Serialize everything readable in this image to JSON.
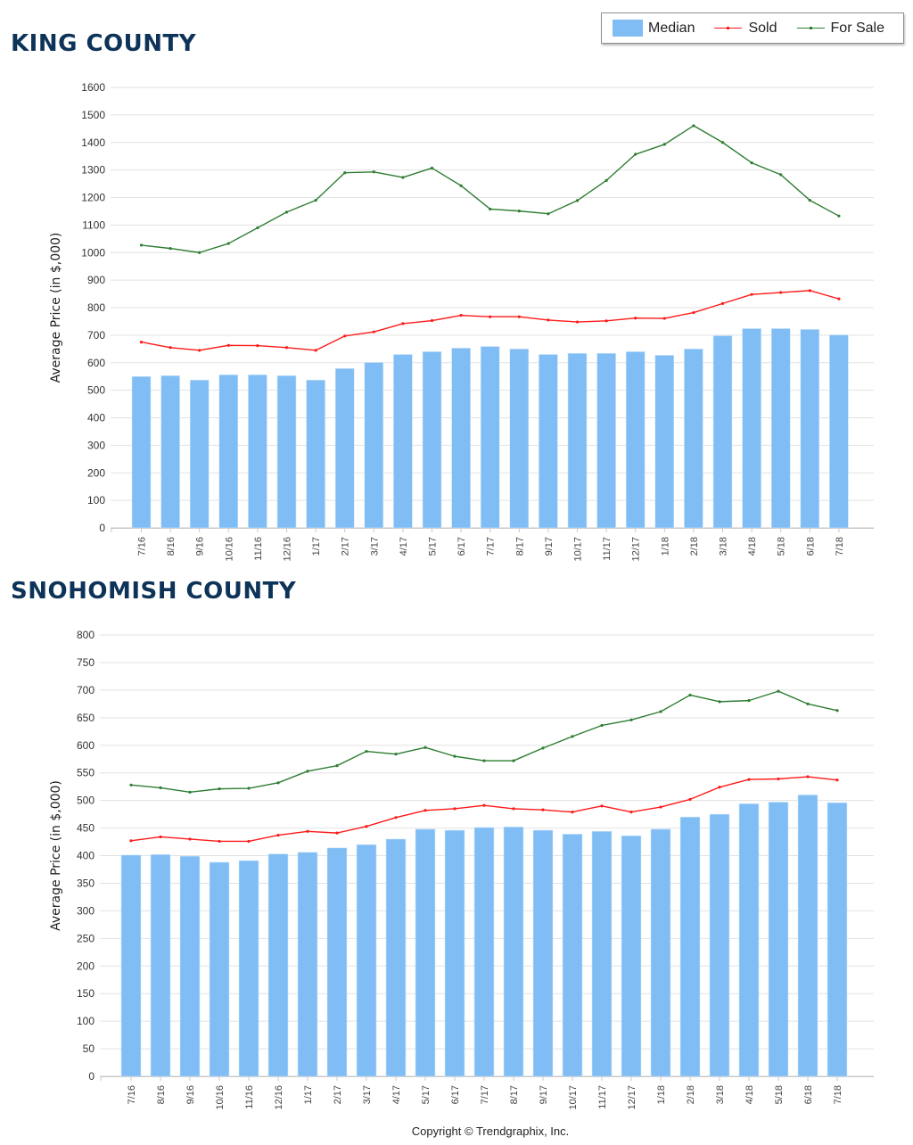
{
  "legend": {
    "median_label": "Median",
    "sold_label": "Sold",
    "for_sale_label": "For Sale",
    "colors": {
      "median": "#7fbdf4",
      "sold": "#ff1a1a",
      "for_sale": "#2e7d32"
    }
  },
  "footer": {
    "copyright": "Copyright © Trendgraphix, Inc."
  },
  "chart_data": [
    {
      "type": "bar",
      "title": "KING COUNTY",
      "xlabel": "",
      "ylabel": "Average Price (in $,000)",
      "ylim": [
        0,
        1600
      ],
      "yticks": [
        0,
        100,
        200,
        300,
        400,
        500,
        600,
        700,
        800,
        900,
        1000,
        1100,
        1200,
        1300,
        1400,
        1500,
        1600
      ],
      "grid": true,
      "legend_position": "top-right",
      "categories": [
        "7/16",
        "8/16",
        "9/16",
        "10/16",
        "11/16",
        "12/16",
        "1/17",
        "2/17",
        "3/17",
        "4/17",
        "5/17",
        "6/17",
        "7/17",
        "8/17",
        "9/17",
        "10/17",
        "11/17",
        "12/17",
        "1/18",
        "2/18",
        "3/18",
        "4/18",
        "5/18",
        "6/18",
        "7/18"
      ],
      "series": [
        {
          "name": "Median",
          "kind": "bar",
          "values": [
            550,
            553,
            537,
            556,
            556,
            553,
            537,
            579,
            601,
            630,
            640,
            653,
            659,
            650,
            630,
            634,
            634,
            640,
            627,
            650,
            698,
            724,
            724,
            721,
            701
          ]
        },
        {
          "name": "Sold",
          "kind": "line",
          "values": [
            675,
            655,
            645,
            663,
            662,
            655,
            645,
            697,
            712,
            742,
            753,
            772,
            767,
            767,
            755,
            748,
            752,
            762,
            761,
            782,
            815,
            848,
            855,
            862,
            832
          ]
        },
        {
          "name": "For Sale",
          "kind": "line",
          "values": [
            1027,
            1015,
            1000,
            1033,
            1090,
            1147,
            1190,
            1290,
            1293,
            1273,
            1307,
            1243,
            1158,
            1151,
            1141,
            1189,
            1262,
            1357,
            1393,
            1461,
            1400,
            1326,
            1283,
            1190,
            1133
          ]
        }
      ]
    },
    {
      "type": "bar",
      "title": "SNOHOMISH COUNTY",
      "xlabel": "",
      "ylabel": "Average Price (in $,000)",
      "ylim": [
        0,
        800
      ],
      "yticks": [
        0,
        50,
        100,
        150,
        200,
        250,
        300,
        350,
        400,
        450,
        500,
        550,
        600,
        650,
        700,
        750,
        800
      ],
      "grid": true,
      "legend_position": "top-right",
      "categories": [
        "7/16",
        "8/16",
        "9/16",
        "10/16",
        "11/16",
        "12/16",
        "1/17",
        "2/17",
        "3/17",
        "4/17",
        "5/17",
        "6/17",
        "7/17",
        "8/17",
        "9/17",
        "10/17",
        "11/17",
        "12/17",
        "1/18",
        "2/18",
        "3/18",
        "4/18",
        "5/18",
        "6/18",
        "7/18"
      ],
      "series": [
        {
          "name": "Median",
          "kind": "bar",
          "values": [
            401,
            402,
            399,
            388,
            391,
            403,
            406,
            414,
            420,
            430,
            448,
            446,
            451,
            452,
            446,
            439,
            444,
            436,
            448,
            470,
            475,
            494,
            497,
            510,
            496
          ]
        },
        {
          "name": "Sold",
          "kind": "line",
          "values": [
            427,
            434,
            430,
            426,
            426,
            437,
            444,
            441,
            453,
            469,
            482,
            485,
            491,
            485,
            483,
            479,
            490,
            479,
            488,
            502,
            524,
            538,
            539,
            543,
            537
          ]
        },
        {
          "name": "For Sale",
          "kind": "line",
          "values": [
            528,
            523,
            515,
            521,
            522,
            532,
            553,
            563,
            589,
            584,
            596,
            580,
            572,
            572,
            595,
            616,
            636,
            646,
            661,
            691,
            679,
            681,
            698,
            675,
            663
          ]
        }
      ]
    }
  ]
}
